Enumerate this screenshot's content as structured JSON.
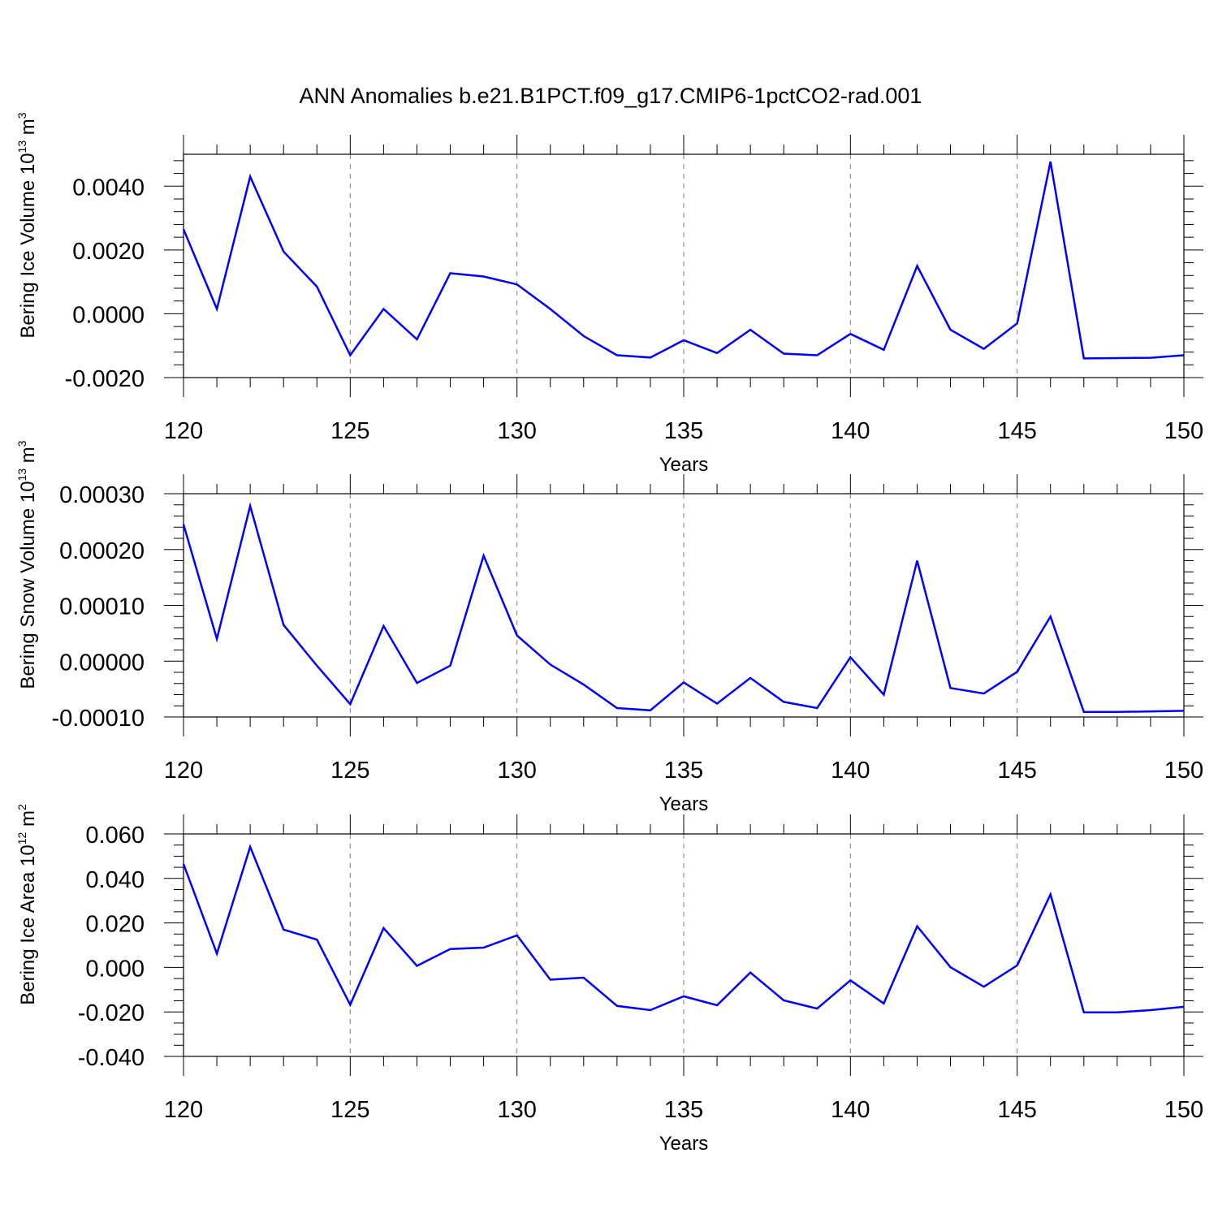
{
  "figure": {
    "title": "ANN Anomalies b.e21.B1PCT.f09_g17.CMIP6-1pctCO2-rad.001"
  },
  "colors": {
    "line": "#0000ff",
    "frame": "#000000",
    "gridline": "#808080",
    "background": "#ffffff"
  },
  "chart_data": [
    {
      "type": "line",
      "title": "ANN Anomalies b.e21.B1PCT.f09_g17.CMIP6-1pctCO2-rad.001",
      "xlabel": "Years",
      "ylabel": {
        "prefix": "Bering Ice Volume 10",
        "exponent": "13",
        "unit": "m",
        "unit_exponent": "3"
      },
      "xlim": [
        120,
        150
      ],
      "ylim": [
        -0.002,
        0.005
      ],
      "x_ticks": [
        120,
        125,
        130,
        135,
        140,
        145,
        150
      ],
      "x_tick_labels": [
        "120",
        "125",
        "130",
        "135",
        "140",
        "145",
        "150"
      ],
      "y_ticks": [
        -0.002,
        0,
        0.002,
        0.004
      ],
      "y_tick_labels": [
        "-0.0020",
        "0.0000",
        "0.0020",
        "0.0040"
      ],
      "x_minor_step": 1,
      "y_minor_step": 0.0004,
      "grid": {
        "x": "dashed",
        "y": false
      },
      "x": [
        120,
        121,
        122,
        123,
        124,
        125,
        126,
        127,
        128,
        129,
        130,
        131,
        132,
        133,
        134,
        135,
        136,
        137,
        138,
        139,
        140,
        141,
        142,
        143,
        144,
        145,
        146,
        147,
        148,
        149,
        150
      ],
      "series": [
        {
          "values": [
            0.00265,
            0.00015,
            0.0043,
            0.00195,
            0.00085,
            -0.0013,
            0.00015,
            -0.0008,
            0.00127,
            0.00117,
            0.00092,
            0.00015,
            -0.0007,
            -0.0013,
            -0.00137,
            -0.00083,
            -0.00123,
            -0.0005,
            -0.00125,
            -0.0013,
            -0.00063,
            -0.00113,
            0.0015,
            -0.0005,
            -0.0011,
            -0.0003,
            0.00477,
            -0.0014,
            -0.00139,
            -0.00138,
            -0.0013
          ]
        }
      ]
    },
    {
      "type": "line",
      "xlabel": "Years",
      "ylabel": {
        "prefix": "Bering Snow Volume 10",
        "exponent": "13",
        "unit": "m",
        "unit_exponent": "3"
      },
      "xlim": [
        120,
        150
      ],
      "ylim": [
        -0.0001,
        0.0003
      ],
      "x_ticks": [
        120,
        125,
        130,
        135,
        140,
        145,
        150
      ],
      "x_tick_labels": [
        "120",
        "125",
        "130",
        "135",
        "140",
        "145",
        "150"
      ],
      "y_ticks": [
        -0.0001,
        0,
        0.0001,
        0.0002,
        0.0003
      ],
      "y_tick_labels": [
        "-0.00010",
        "0.00000",
        "0.00010",
        "0.00020",
        "0.00030"
      ],
      "x_minor_step": 1,
      "y_minor_step": 2e-05,
      "grid": {
        "x": "dashed",
        "y": false
      },
      "x": [
        120,
        121,
        122,
        123,
        124,
        125,
        126,
        127,
        128,
        129,
        130,
        131,
        132,
        133,
        134,
        135,
        136,
        137,
        138,
        139,
        140,
        141,
        142,
        143,
        144,
        145,
        146,
        147,
        148,
        149,
        150
      ],
      "series": [
        {
          "values": [
            0.000245,
            4e-05,
            0.000278,
            6.5e-05,
            -8e-06,
            -7.7e-05,
            6.3e-05,
            -3.9e-05,
            -8e-06,
            0.000189,
            4.6e-05,
            -6e-06,
            -4.2e-05,
            -8.4e-05,
            -8.8e-05,
            -3.8e-05,
            -7.6e-05,
            -3e-05,
            -7.3e-05,
            -8.4e-05,
            7e-06,
            -6e-05,
            0.00018,
            -4.8e-05,
            -5.8e-05,
            -1.9e-05,
            8e-05,
            -9.1e-05,
            -9.1e-05,
            -9e-05,
            -8.9e-05
          ]
        }
      ]
    },
    {
      "type": "line",
      "xlabel": "Years",
      "ylabel": {
        "prefix": "Bering Ice Area 10",
        "exponent": "12",
        "unit": "m",
        "unit_exponent": "2"
      },
      "xlim": [
        120,
        150
      ],
      "ylim": [
        -0.04,
        0.06
      ],
      "x_ticks": [
        120,
        125,
        130,
        135,
        140,
        145,
        150
      ],
      "x_tick_labels": [
        "120",
        "125",
        "130",
        "135",
        "140",
        "145",
        "150"
      ],
      "y_ticks": [
        -0.04,
        -0.02,
        0,
        0.02,
        0.04,
        0.06
      ],
      "y_tick_labels": [
        "-0.040",
        "-0.020",
        "0.000",
        "0.020",
        "0.040",
        "0.060"
      ],
      "x_minor_step": 1,
      "y_minor_step": 0.005,
      "grid": {
        "x": "dashed",
        "y": false
      },
      "x": [
        120,
        121,
        122,
        123,
        124,
        125,
        126,
        127,
        128,
        129,
        130,
        131,
        132,
        133,
        134,
        135,
        136,
        137,
        138,
        139,
        140,
        141,
        142,
        143,
        144,
        145,
        146,
        147,
        148,
        149,
        150
      ],
      "series": [
        {
          "values": [
            0.0465,
            0.0062,
            0.0542,
            0.017,
            0.0125,
            -0.0168,
            0.0177,
            0.0007,
            0.0083,
            0.0089,
            0.0144,
            -0.0055,
            -0.0046,
            -0.0173,
            -0.0192,
            -0.013,
            -0.017,
            -0.0023,
            -0.0148,
            -0.0185,
            -0.0058,
            -0.0162,
            0.0185,
            0.0001,
            -0.0087,
            0.0009,
            0.0328,
            -0.0202,
            -0.0202,
            -0.0192,
            -0.0177
          ]
        }
      ]
    }
  ]
}
